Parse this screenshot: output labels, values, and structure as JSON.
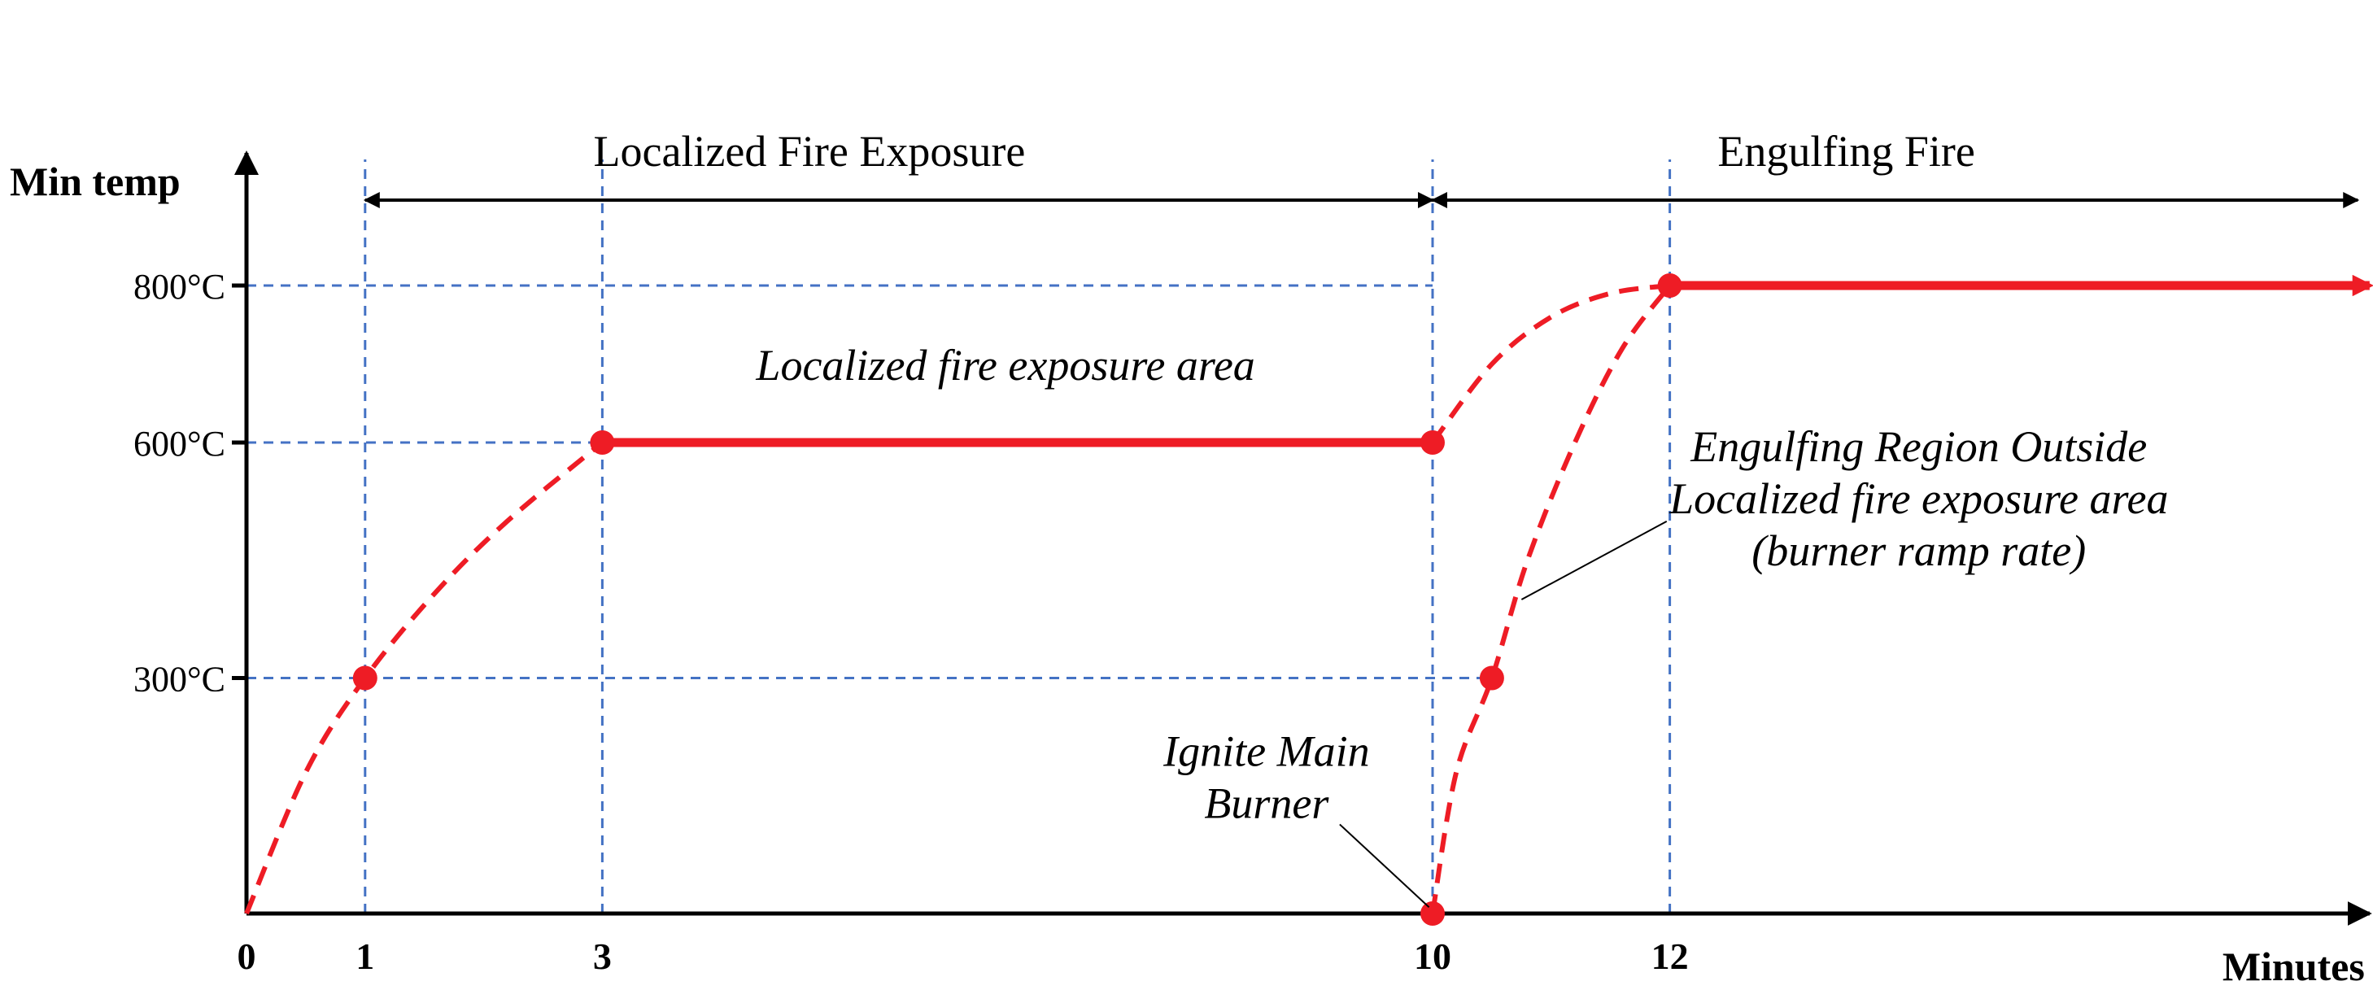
{
  "chart_data": {
    "type": "line",
    "title": "",
    "xlabel": "Minutes",
    "ylabel": "Min temp",
    "x_ticks": [
      {
        "value": 0,
        "label": "0"
      },
      {
        "value": 1,
        "label": "1"
      },
      {
        "value": 3,
        "label": "3"
      },
      {
        "value": 10,
        "label": "10"
      },
      {
        "value": 12,
        "label": "12"
      }
    ],
    "y_ticks": [
      {
        "value": 300,
        "label": "300°C"
      },
      {
        "value": 600,
        "label": "600°C"
      },
      {
        "value": 800,
        "label": "800°C"
      }
    ],
    "xlim": [
      0,
      17.9
    ],
    "ylim": [
      0,
      1000
    ],
    "grid": "dashed reference lines at the tick values",
    "phases": [
      {
        "label": "Localized Fire Exposure",
        "start": 1,
        "end": 10
      },
      {
        "label": "Engulfing Fire",
        "start": 10,
        "end": 17.8
      }
    ],
    "series": [
      {
        "role": "localized",
        "ramp": [
          [
            0,
            0
          ],
          [
            0.5,
            180
          ],
          [
            1,
            300
          ],
          [
            1.6,
            410
          ],
          [
            2.2,
            500
          ],
          [
            3,
            600
          ]
        ],
        "hold": [
          [
            3,
            600
          ],
          [
            10,
            600
          ]
        ],
        "markers": [
          [
            1,
            300
          ],
          [
            3,
            600
          ],
          [
            10,
            600
          ]
        ]
      },
      {
        "role": "engulfing",
        "ramp_from_600": [
          [
            10,
            600
          ],
          [
            10.5,
            700
          ],
          [
            11,
            760
          ],
          [
            11.5,
            790
          ],
          [
            12,
            800
          ]
        ],
        "ramp_from_ignition": [
          [
            10,
            0
          ],
          [
            10.2,
            180
          ],
          [
            10.5,
            300
          ],
          [
            10.8,
            450
          ],
          [
            11.2,
            600
          ],
          [
            11.6,
            720
          ],
          [
            12,
            800
          ]
        ],
        "hold": [
          [
            12,
            800
          ],
          [
            17.9,
            800
          ]
        ],
        "markers": [
          [
            10,
            0
          ],
          [
            10.5,
            300
          ],
          [
            12,
            800
          ]
        ]
      }
    ],
    "annotations": [
      {
        "lines": [
          "Localized fire exposure area"
        ],
        "x": 6.4,
        "y": 680
      },
      {
        "lines": [
          "Engulfing Region Outside",
          "Localized fire exposure area",
          "(burner ramp rate)"
        ],
        "x": 14.1,
        "y": 510,
        "points_to": [
          10.75,
          400
        ]
      },
      {
        "lines": [
          "Ignite Main",
          "Burner"
        ],
        "x": 8.6,
        "y": 155,
        "points_to": [
          9.97,
          8
        ]
      }
    ],
    "colors": {
      "series": "#ee1c25",
      "grid": "#4472c4",
      "axis": "#000000"
    }
  }
}
